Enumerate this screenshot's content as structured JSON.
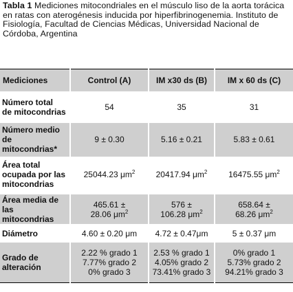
{
  "caption": {
    "label": "Tabla 1",
    "text": " Mediciones mitocondriales en el músculo liso de la aorta torácica en ratas con aterogénesis inducida por hiperfibrinogenemia. Instituto de Fisiología, Facultad de Ciencias Médicas, Universidad Nacional de Córdoba, Argentina"
  },
  "headers": [
    "Mediciones",
    "Control (A)",
    "IM x30 ds (B)",
    "IM x 60 ds (C)"
  ],
  "rows": [
    {
      "label": [
        "Número total",
        "de mitocondrias"
      ],
      "values": [
        [
          "54"
        ],
        [
          "35"
        ],
        [
          "31"
        ]
      ]
    },
    {
      "label": [
        "Número medio",
        "de mitocondrias*"
      ],
      "values": [
        [
          "9 ± 0.30"
        ],
        [
          "5.16 ± 0.21"
        ],
        [
          "5.83 ± 0.61"
        ]
      ]
    },
    {
      "label": [
        "Área total",
        "ocupada por las",
        "mitocondrias"
      ],
      "values": [
        [
          "25044.23 μm2"
        ],
        [
          "20417.94 μm2"
        ],
        [
          "16475.55 μm2"
        ]
      ]
    },
    {
      "label": [
        "Área media de",
        "las mitocondrias"
      ],
      "values": [
        [
          "465.61 ±",
          "28.06 μm2"
        ],
        [
          "576 ±",
          "106.28 μm2"
        ],
        [
          "658.64 ±",
          "68.26 μm2"
        ]
      ]
    },
    {
      "label": [
        "Diámetro"
      ],
      "values": [
        [
          "4.60 ± 0.20 μm"
        ],
        [
          "4.72 ± 0.47μm"
        ],
        [
          "5 ± 0.37 μm"
        ]
      ]
    },
    {
      "label": [
        "Grado de",
        "alteración"
      ],
      "values": [
        [
          "2.22 % grado 1",
          "7.77% grado 2",
          "0% grado 3"
        ],
        [
          "2.53 % grado 1",
          "4.05% grado 2",
          "73.41% grado 3"
        ],
        [
          "0% grado 1",
          "5.73% grado 2",
          "94.21% grado 3"
        ]
      ]
    }
  ]
}
